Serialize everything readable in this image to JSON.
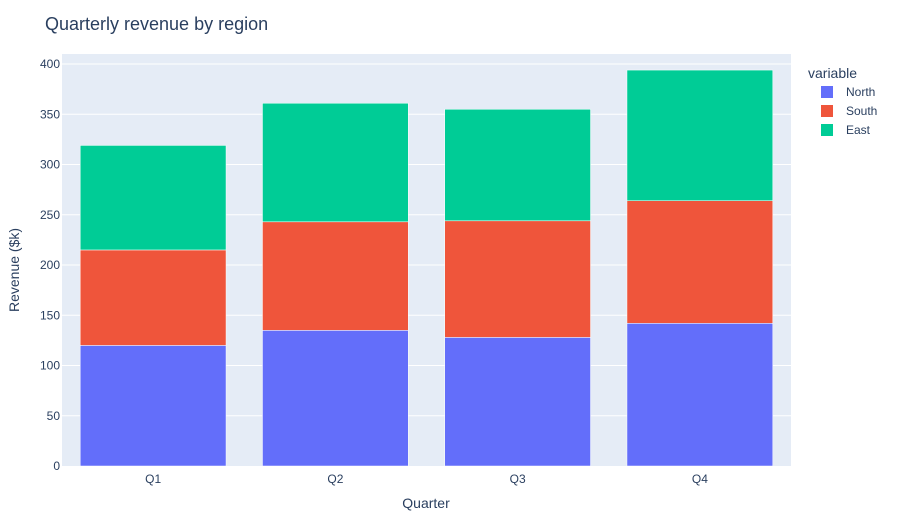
{
  "chart_data": {
    "type": "bar",
    "stacked": true,
    "title": "Quarterly revenue by region",
    "xlabel": "Quarter",
    "ylabel": "Revenue ($k)",
    "ylim": [
      0,
      410
    ],
    "yticks": [
      0,
      50,
      100,
      150,
      200,
      250,
      300,
      350,
      400
    ],
    "categories": [
      "Q1",
      "Q2",
      "Q3",
      "Q4"
    ],
    "legend_title": "variable",
    "legend_position": "top-right",
    "grid": true,
    "plot_background": "#E5ECF6",
    "series": [
      {
        "name": "North",
        "color": "#636EFA",
        "values": [
          120,
          135,
          128,
          142
        ]
      },
      {
        "name": "South",
        "color": "#EF553B",
        "values": [
          95,
          108,
          116,
          122
        ]
      },
      {
        "name": "East",
        "color": "#00CC96",
        "values": [
          104,
          118,
          111,
          130
        ]
      }
    ]
  }
}
